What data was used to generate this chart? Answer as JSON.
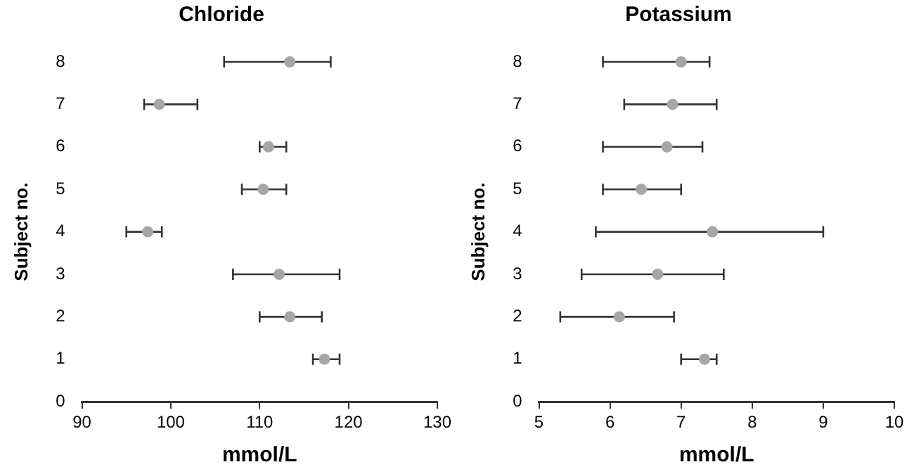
{
  "chart_data": [
    {
      "type": "scatter",
      "title": "Chloride",
      "xlabel": "mmol/L",
      "ylabel": "Subject no.",
      "marker": "circle",
      "grid": false,
      "legend": false,
      "series": [
        {
          "color": "#a6a6a6",
          "x": [
            117.3,
            113.4,
            112.2,
            97.4,
            110.4,
            111.0,
            98.7,
            113.4
          ],
          "values": [
            1,
            2,
            3,
            4,
            5,
            6,
            7,
            8
          ],
          "xerrors": [
            [
              116,
              119
            ],
            [
              110,
              117
            ],
            [
              107,
              119
            ],
            [
              95,
              99
            ],
            [
              108,
              113
            ],
            [
              110,
              113
            ],
            [
              97,
              103
            ],
            [
              106,
              118
            ]
          ]
        }
      ],
      "xlim": [
        90,
        130
      ],
      "xticks": [
        90,
        100,
        110,
        120,
        130
      ],
      "ylim": [
        0,
        8
      ],
      "yticks": [
        0,
        1,
        2,
        3,
        4,
        5,
        6,
        7,
        8
      ]
    },
    {
      "type": "scatter",
      "title": "Potassium",
      "xlabel": "mmol/L",
      "ylabel": "Subject no.",
      "marker": "circle",
      "grid": false,
      "legend": false,
      "series": [
        {
          "color": "#a6a6a6",
          "x": [
            7.33,
            6.13,
            6.67,
            7.44,
            6.44,
            6.8,
            6.88,
            7.0
          ],
          "values": [
            1,
            2,
            3,
            4,
            5,
            6,
            7,
            8
          ],
          "xerrors": [
            [
              7.0,
              7.5
            ],
            [
              5.3,
              6.9
            ],
            [
              5.6,
              7.6
            ],
            [
              5.8,
              9.0
            ],
            [
              5.9,
              7.0
            ],
            [
              5.9,
              7.3
            ],
            [
              6.2,
              7.5
            ],
            [
              5.9,
              7.4
            ]
          ]
        }
      ],
      "xlim": [
        5,
        10
      ],
      "xticks": [
        5,
        6,
        7,
        8,
        9,
        10
      ],
      "ylim": [
        0,
        8
      ],
      "yticks": [
        0,
        1,
        2,
        3,
        4,
        5,
        6,
        7,
        8
      ]
    }
  ]
}
